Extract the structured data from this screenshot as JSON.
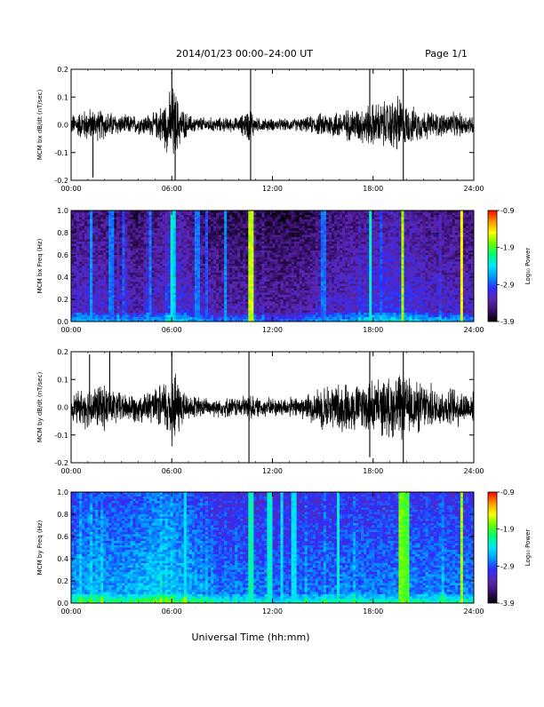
{
  "header": {
    "title": "2014/01/23  00:00–24:00 UT",
    "page": "Page 1/1"
  },
  "xlabel": "Universal Time (hh:mm)",
  "colorbar": {
    "ticks": [
      "-0.9",
      "-1.9",
      "-2.9",
      "-3.9"
    ],
    "label": "Log₁₀ Power",
    "colors": [
      "#000000",
      "#3a0f6e",
      "#5a28b4",
      "#2d2dff",
      "#0096ff",
      "#00e6ff",
      "#00ff78",
      "#64ff00",
      "#ffff00",
      "#ff9600",
      "#ff0000"
    ]
  },
  "chart_data": [
    {
      "type": "line",
      "ylabel": "MCM bx dB/dt (nT/sec)",
      "xlim": [
        0,
        24
      ],
      "ylim": [
        -0.2,
        0.2
      ],
      "x_ticks": [
        "00:00",
        "06:00",
        "12:00",
        "18:00",
        "24:00"
      ],
      "y_ticks": [
        "0.2",
        "0.1",
        "0.0",
        "-0.1",
        "-0.2"
      ],
      "color": "#000000",
      "envelope": {
        "x": [
          0,
          1,
          2,
          3,
          4,
          5,
          5.8,
          6.1,
          6.5,
          7,
          8,
          9,
          10,
          10.7,
          11,
          12,
          13,
          14,
          15,
          16,
          17,
          18,
          19,
          19.5,
          20,
          21,
          22,
          23,
          24
        ],
        "amplitude": [
          0.04,
          0.07,
          0.06,
          0.04,
          0.04,
          0.05,
          0.12,
          0.17,
          0.08,
          0.04,
          0.03,
          0.03,
          0.03,
          0.08,
          0.03,
          0.025,
          0.025,
          0.03,
          0.05,
          0.06,
          0.07,
          0.09,
          0.1,
          0.13,
          0.08,
          0.06,
          0.05,
          0.05,
          0.04
        ]
      },
      "spikes": [
        {
          "x": 1.3,
          "y": -0.19
        },
        {
          "x": 6.0,
          "y": 0.19
        },
        {
          "x": 6.2,
          "y": -0.2
        },
        {
          "x": 10.7,
          "y": 0.21
        },
        {
          "x": 10.7,
          "y": -0.21
        },
        {
          "x": 17.8,
          "y": 0.2
        },
        {
          "x": 19.8,
          "y": 0.2
        },
        {
          "x": 19.8,
          "y": -0.2
        }
      ]
    },
    {
      "type": "heatmap",
      "ylabel": "MCM bx Freq (Hz)",
      "xlim": [
        0,
        24
      ],
      "ylim": [
        0,
        1.0
      ],
      "zlim": [
        -3.9,
        -0.9
      ],
      "x_ticks": [
        "00:00",
        "06:00",
        "12:00",
        "18:00",
        "24:00"
      ],
      "y_ticks": [
        "1.0",
        "0.8",
        "0.6",
        "0.4",
        "0.2",
        "0.0"
      ],
      "base_level": -3.55,
      "activity": {
        "x": [
          0,
          1,
          2,
          3,
          4,
          5,
          6,
          7,
          8,
          9,
          10,
          11,
          12,
          13,
          14,
          15,
          16,
          17,
          18,
          19,
          20,
          21,
          22,
          23,
          24
        ],
        "value": [
          0.35,
          0.45,
          0.4,
          0.3,
          0.3,
          0.35,
          0.6,
          0.45,
          0.3,
          0.25,
          0.25,
          0.2,
          0.2,
          0.2,
          0.25,
          0.35,
          0.4,
          0.45,
          0.55,
          0.6,
          0.55,
          0.45,
          0.4,
          0.4,
          0.35
        ]
      },
      "lines": [
        {
          "x": 1.2,
          "level": -2.7
        },
        {
          "x": 2.4,
          "level": -2.8
        },
        {
          "x": 3.1,
          "level": -2.9
        },
        {
          "x": 4.7,
          "level": -2.8
        },
        {
          "x": 6.0,
          "level": -2.3
        },
        {
          "x": 6.2,
          "level": -2.5
        },
        {
          "x": 7.5,
          "level": -2.8
        },
        {
          "x": 8.1,
          "level": -2.9
        },
        {
          "x": 9.2,
          "level": -2.7
        },
        {
          "x": 10.7,
          "level": -1.6
        },
        {
          "x": 15.0,
          "level": -2.8
        },
        {
          "x": 17.8,
          "level": -2.3
        },
        {
          "x": 18.5,
          "level": -2.9
        },
        {
          "x": 19.8,
          "level": -1.7
        },
        {
          "x": 23.3,
          "level": -1.5
        }
      ]
    },
    {
      "type": "line",
      "ylabel": "MCM by dB/dt (nT/sec)",
      "xlim": [
        0,
        24
      ],
      "ylim": [
        -0.2,
        0.2
      ],
      "x_ticks": [
        "00:00",
        "06:00",
        "12:00",
        "18:00",
        "24:00"
      ],
      "y_ticks": [
        "0.2",
        "0.1",
        "0.0",
        "-0.1",
        "-0.2"
      ],
      "color": "#000000",
      "envelope": {
        "x": [
          0,
          1,
          2,
          3,
          4,
          5,
          5.8,
          6.1,
          6.5,
          7,
          8,
          9,
          10,
          10.7,
          11,
          12,
          13,
          14,
          15,
          16,
          17,
          18,
          19,
          19.5,
          20,
          21,
          22,
          23,
          24
        ],
        "amplitude": [
          0.05,
          0.09,
          0.09,
          0.06,
          0.06,
          0.07,
          0.13,
          0.18,
          0.1,
          0.05,
          0.04,
          0.04,
          0.04,
          0.06,
          0.04,
          0.04,
          0.04,
          0.05,
          0.09,
          0.1,
          0.1,
          0.11,
          0.12,
          0.14,
          0.12,
          0.1,
          0.08,
          0.08,
          0.06
        ]
      },
      "spikes": [
        {
          "x": 1.1,
          "y": 0.19
        },
        {
          "x": 2.3,
          "y": 0.2
        },
        {
          "x": 6.0,
          "y": 0.2
        },
        {
          "x": 10.6,
          "y": 0.21
        },
        {
          "x": 10.6,
          "y": -0.21
        },
        {
          "x": 17.8,
          "y": 0.2
        },
        {
          "x": 17.8,
          "y": -0.18
        },
        {
          "x": 19.8,
          "y": 0.2
        },
        {
          "x": 19.8,
          "y": -0.2
        }
      ]
    },
    {
      "type": "heatmap",
      "ylabel": "MCM by Freq (Hz)",
      "xlim": [
        0,
        24
      ],
      "ylim": [
        0,
        1.0
      ],
      "zlim": [
        -3.9,
        -0.9
      ],
      "x_ticks": [
        "00:00",
        "06:00",
        "12:00",
        "18:00",
        "24:00"
      ],
      "y_ticks": [
        "1.0",
        "0.8",
        "0.6",
        "0.4",
        "0.2",
        "0.0"
      ],
      "base_level": -2.95,
      "activity": {
        "x": [
          0,
          1,
          2,
          3,
          4,
          5,
          6,
          7,
          8,
          9,
          10,
          11,
          12,
          13,
          14,
          15,
          16,
          17,
          18,
          19,
          20,
          21,
          22,
          23,
          24
        ],
        "value": [
          0.35,
          0.4,
          0.4,
          0.35,
          0.45,
          0.55,
          0.5,
          0.45,
          0.25,
          0.2,
          0.2,
          0.2,
          0.15,
          0.15,
          0.2,
          0.2,
          0.25,
          0.25,
          0.25,
          0.25,
          0.3,
          0.25,
          0.25,
          0.25,
          0.25
        ]
      },
      "lines": [
        {
          "x": 6.8,
          "level": -2.4
        },
        {
          "x": 10.7,
          "level": -2.2
        },
        {
          "x": 11.8,
          "level": -2.3
        },
        {
          "x": 12.6,
          "level": -2.4
        },
        {
          "x": 13.3,
          "level": -2.4
        },
        {
          "x": 15.9,
          "level": -2.3
        },
        {
          "x": 19.7,
          "level": -1.8
        },
        {
          "x": 20.0,
          "level": -1.9
        },
        {
          "x": 23.3,
          "level": -1.7
        }
      ]
    }
  ]
}
